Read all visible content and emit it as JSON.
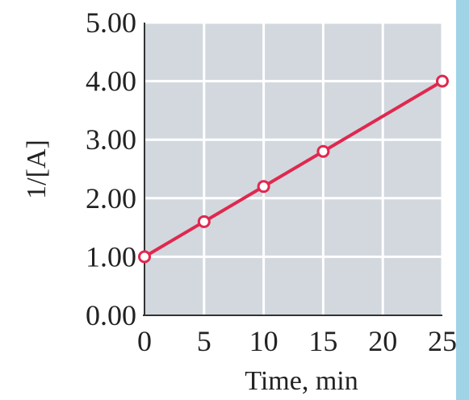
{
  "chart_data": {
    "type": "line",
    "title": "",
    "xlabel": "Time, min",
    "ylabel": "1/[A]",
    "xlim": [
      0,
      25
    ],
    "ylim": [
      0,
      5
    ],
    "xticks": [
      0,
      5,
      10,
      15,
      20,
      25
    ],
    "xtick_labels": [
      "0",
      "5",
      "10",
      "15",
      "20",
      "25"
    ],
    "yticks": [
      0,
      1,
      2,
      3,
      4,
      5
    ],
    "ytick_labels": [
      "0.00",
      "1.00",
      "2.00",
      "3.00",
      "4.00",
      "5.00"
    ],
    "grid": true,
    "legend": "none",
    "colors": {
      "plot_background": "#d2d8de",
      "grid": "#ffffff",
      "line": "#e0284f",
      "marker_fill": "#ffffff",
      "edge_right": "#9fd3e6"
    },
    "series": [
      {
        "x": [
          0,
          5,
          10,
          15,
          25
        ],
        "y": [
          1.0,
          1.6,
          2.2,
          2.8,
          4.0
        ]
      }
    ]
  }
}
